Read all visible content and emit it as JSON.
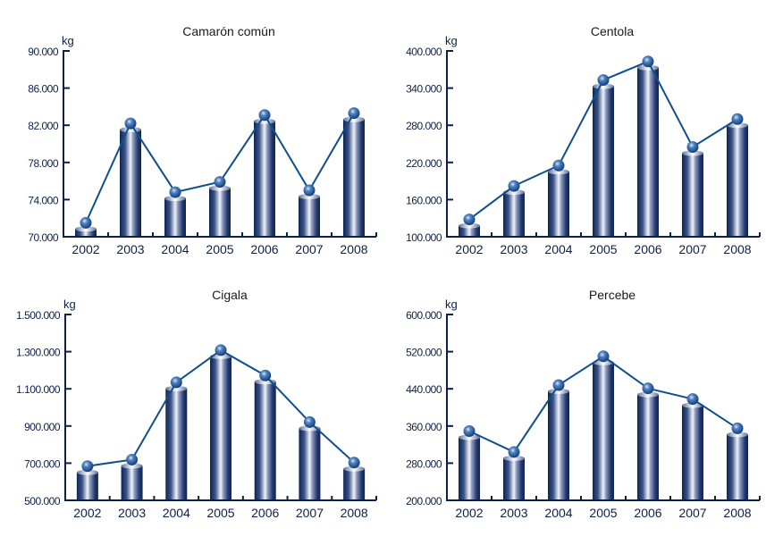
{
  "colors": {
    "axis": "#0d2147",
    "line": "#0f4f8c",
    "bar_dark": "#132b5a",
    "bar_light": "#eef0f8",
    "ball": "#2a5f9e"
  },
  "chart_data": [
    {
      "type": "bar",
      "title": "Camarón común",
      "unit": "kg",
      "categories": [
        "2002",
        "2003",
        "2004",
        "2005",
        "2006",
        "2007",
        "2008"
      ],
      "values": [
        71500,
        82200,
        74800,
        75900,
        83100,
        75000,
        83300
      ],
      "ylim": [
        70000,
        90000
      ],
      "yticks": [
        70000,
        74000,
        78000,
        82000,
        86000,
        90000
      ],
      "ytick_labels": [
        "70.000",
        "74.000",
        "78.000",
        "82.000",
        "86.000",
        "90.000"
      ],
      "line_overlay": true
    },
    {
      "type": "bar",
      "title": "Centola",
      "unit": "kg",
      "categories": [
        "2002",
        "2003",
        "2004",
        "2005",
        "2006",
        "2007",
        "2008"
      ],
      "values": [
        128000,
        182000,
        215000,
        353000,
        383000,
        245000,
        290000
      ],
      "ylim": [
        100000,
        400000
      ],
      "yticks": [
        100000,
        160000,
        220000,
        280000,
        340000,
        400000
      ],
      "ytick_labels": [
        "100.000",
        "160.000",
        "220.000",
        "280.000",
        "340.000",
        "400.000"
      ],
      "line_overlay": true
    },
    {
      "type": "bar",
      "title": "Cigala",
      "unit": "kg",
      "categories": [
        "2002",
        "2003",
        "2004",
        "2005",
        "2006",
        "2007",
        "2008"
      ],
      "values": [
        684000,
        719000,
        1135000,
        1308000,
        1172000,
        921000,
        703000
      ],
      "ylim": [
        500000,
        1500000
      ],
      "yticks": [
        500000,
        700000,
        900000,
        1100000,
        1300000,
        1500000
      ],
      "ytick_labels": [
        "500.000",
        "700.000",
        "900.000",
        "1.100.000",
        "1.300.000",
        "1.500.000"
      ],
      "line_overlay": true
    },
    {
      "type": "bar",
      "title": "Percebe",
      "unit": "kg",
      "categories": [
        "2002",
        "2003",
        "2004",
        "2005",
        "2006",
        "2007",
        "2008"
      ],
      "values": [
        349000,
        304000,
        448000,
        510000,
        441000,
        418000,
        355000
      ],
      "ylim": [
        200000,
        600000
      ],
      "yticks": [
        200000,
        280000,
        360000,
        440000,
        520000,
        600000
      ],
      "ytick_labels": [
        "200.000",
        "280.000",
        "360.000",
        "440.000",
        "520.000",
        "600.000"
      ],
      "line_overlay": true
    }
  ]
}
